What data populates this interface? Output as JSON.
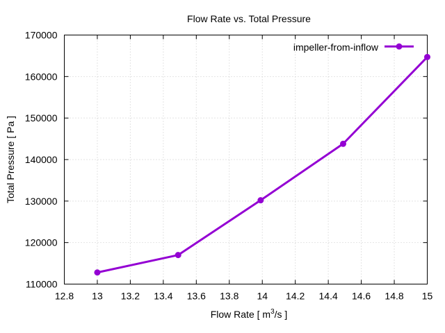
{
  "chart_data": {
    "type": "line",
    "title": "Flow Rate vs. Total Pressure",
    "xlabel_main": "Flow Rate [ m",
    "xlabel_sup": "3",
    "xlabel_tail": "/s ]",
    "ylabel": "Total Pressure [ Pa ]",
    "xlim": [
      12.8,
      15
    ],
    "ylim": [
      110000,
      170000
    ],
    "x_ticks": [
      12.8,
      13,
      13.2,
      13.4,
      13.6,
      13.8,
      14,
      14.2,
      14.4,
      14.6,
      14.8,
      15
    ],
    "x_tick_labels": [
      "12.8",
      "13",
      "13.2",
      "13.4",
      "13.6",
      "13.8",
      "14",
      "14.2",
      "14.4",
      "14.6",
      "14.8",
      "15"
    ],
    "y_ticks": [
      110000,
      120000,
      130000,
      140000,
      150000,
      160000,
      170000
    ],
    "y_tick_labels": [
      "110000",
      "120000",
      "130000",
      "140000",
      "150000",
      "160000",
      "170000"
    ],
    "grid": true,
    "legend_position": "top-right",
    "series": [
      {
        "name": "impeller-from-inflow",
        "color": "#9400d3",
        "x": [
          13.0,
          13.49,
          13.99,
          14.49,
          15.0
        ],
        "y": [
          112800,
          117000,
          130200,
          143800,
          164700
        ]
      }
    ]
  }
}
